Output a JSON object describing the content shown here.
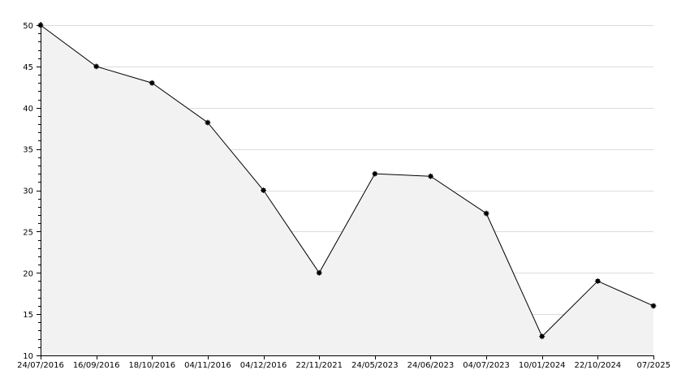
{
  "chart_data": {
    "type": "area",
    "title": "",
    "xlabel": "",
    "ylabel": "",
    "categories": [
      "24/07/2016",
      "16/09/2016",
      "18/10/2016",
      "04/11/2016",
      "04/12/2016",
      "22/11/2021",
      "24/05/2023",
      "24/06/2023",
      "04/07/2023",
      "10/01/2024",
      "22/10/2024",
      "07/2025"
    ],
    "series": [
      {
        "values": [
          50,
          45,
          43,
          38.2,
          30,
          20,
          32,
          31.7,
          27.2,
          12.3,
          19,
          16
        ]
      }
    ],
    "ylim": [
      10,
      50
    ],
    "y_ticks": [
      10,
      15,
      20,
      25,
      30,
      35,
      40,
      45,
      50
    ],
    "grid": true,
    "legend": "none",
    "colors": {
      "line": "#000000",
      "fill": "#f2f2f2",
      "grid": "#dcdcdc",
      "axis": "#000000",
      "marker": "#000000"
    }
  }
}
